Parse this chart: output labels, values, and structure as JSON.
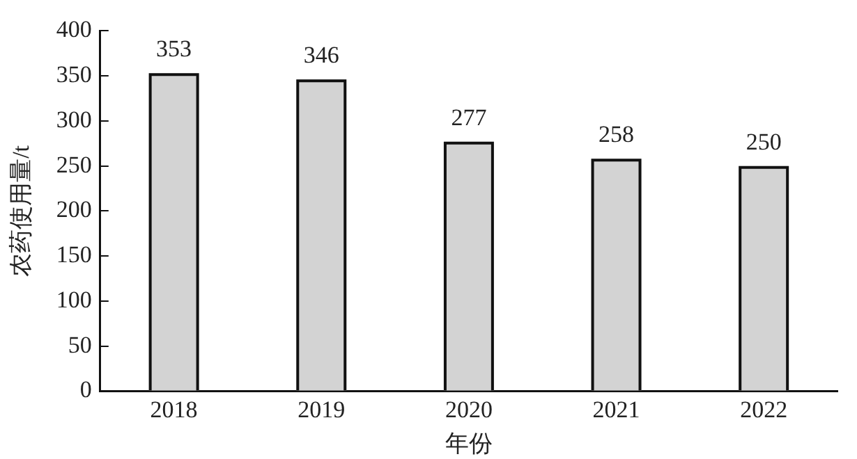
{
  "chart_data": {
    "type": "bar",
    "xlabel": "年份",
    "ylabel": "农药使用量/t",
    "categories": [
      "2018",
      "2019",
      "2020",
      "2021",
      "2022"
    ],
    "values": [
      353,
      346,
      277,
      258,
      250
    ],
    "color": "#d3d3d3",
    "ylim": [
      0,
      400
    ],
    "yticks": [
      0,
      50,
      100,
      150,
      200,
      250,
      300,
      350,
      400
    ],
    "grid": false,
    "legend": false,
    "data_labels": true
  }
}
